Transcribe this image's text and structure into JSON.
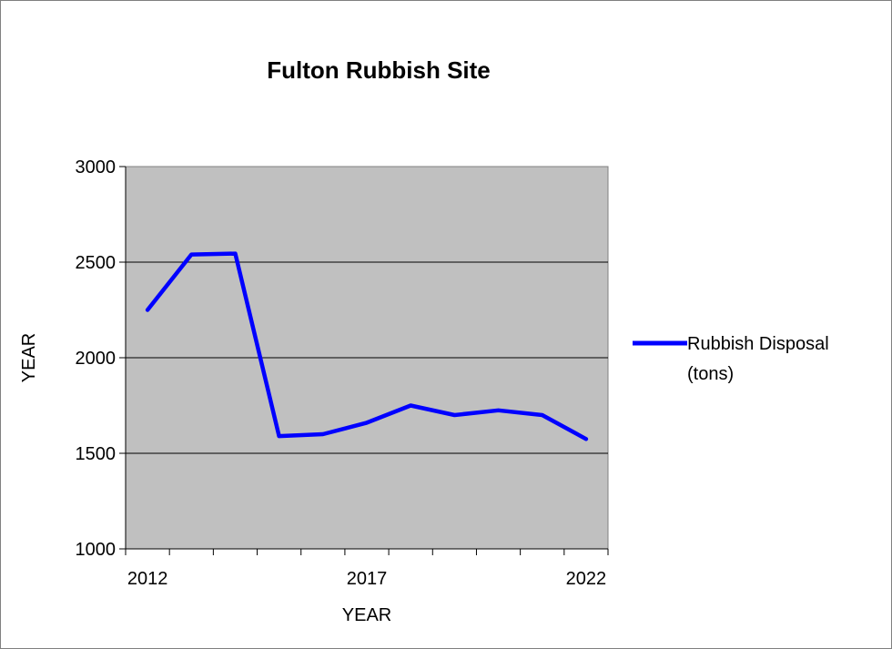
{
  "chart_data": {
    "type": "line",
    "title": "Fulton Rubbish Site",
    "xlabel": "YEAR",
    "ylabel": "YEAR",
    "x": [
      2012,
      2013,
      2014,
      2015,
      2016,
      2017,
      2018,
      2019,
      2020,
      2021,
      2022
    ],
    "x_tick_labels": [
      2012,
      2017,
      2022
    ],
    "series": [
      {
        "name": "Rubbish Disposal (tons)",
        "legend_lines": [
          "Rubbish Disposal",
          "(tons)"
        ],
        "values": [
          2250,
          2540,
          2545,
          1590,
          1600,
          1660,
          1750,
          1700,
          1725,
          1700,
          1575
        ]
      }
    ],
    "ylim": [
      1000,
      3000
    ],
    "yticks": [
      1000,
      1500,
      2000,
      2500,
      3000
    ],
    "grid": true,
    "legend_position": "right",
    "colors": {
      "line": "#0000ff",
      "plot_background": "#c0c0c0",
      "grid": "#000000"
    }
  }
}
